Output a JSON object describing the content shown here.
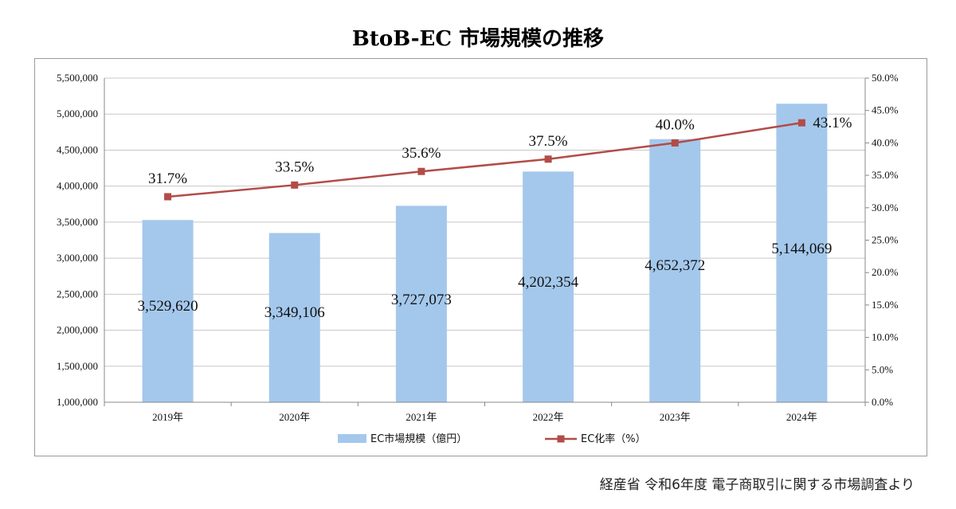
{
  "chart_data": {
    "type": "bar",
    "title": "BtoB-EC 市場規模の推移",
    "categories": [
      "2019年",
      "2020年",
      "2021年",
      "2022年",
      "2023年",
      "2024年"
    ],
    "series": [
      {
        "name": "EC市場規模（億円）",
        "type": "bar",
        "axis": "left",
        "values": [
          3529620,
          3349106,
          3727073,
          4202354,
          4652372,
          5144069
        ],
        "labels": [
          "3,529,620",
          "3,349,106",
          "3,727,073",
          "4,202,354",
          "4,652,372",
          "5,144,069"
        ],
        "color": "#a4c8ec"
      },
      {
        "name": "EC化率（%）",
        "type": "line",
        "axis": "right",
        "values": [
          31.7,
          33.5,
          35.6,
          37.5,
          40.0,
          43.1
        ],
        "labels": [
          "31.7%",
          "33.5%",
          "35.6%",
          "37.5%",
          "40.0%",
          "43.1%"
        ],
        "color": "#b24c47"
      }
    ],
    "y_left": {
      "range": [
        1000000,
        5500000
      ],
      "ticks": [
        "1,000,000",
        "1,500,000",
        "2,000,000",
        "2,500,000",
        "3,000,000",
        "3,500,000",
        "4,000,000",
        "4,500,000",
        "5,000,000",
        "5,500,000"
      ]
    },
    "y_right": {
      "range": [
        0,
        50
      ],
      "ticks": [
        "0.0%",
        "5.0%",
        "10.0%",
        "15.0%",
        "20.0%",
        "25.0%",
        "30.0%",
        "35.0%",
        "40.0%",
        "45.0%",
        "50.0%"
      ]
    },
    "grid": true,
    "legend": "bottom"
  },
  "source_note": "経産省 令和6年度 電子商取引に関する市場調査より"
}
